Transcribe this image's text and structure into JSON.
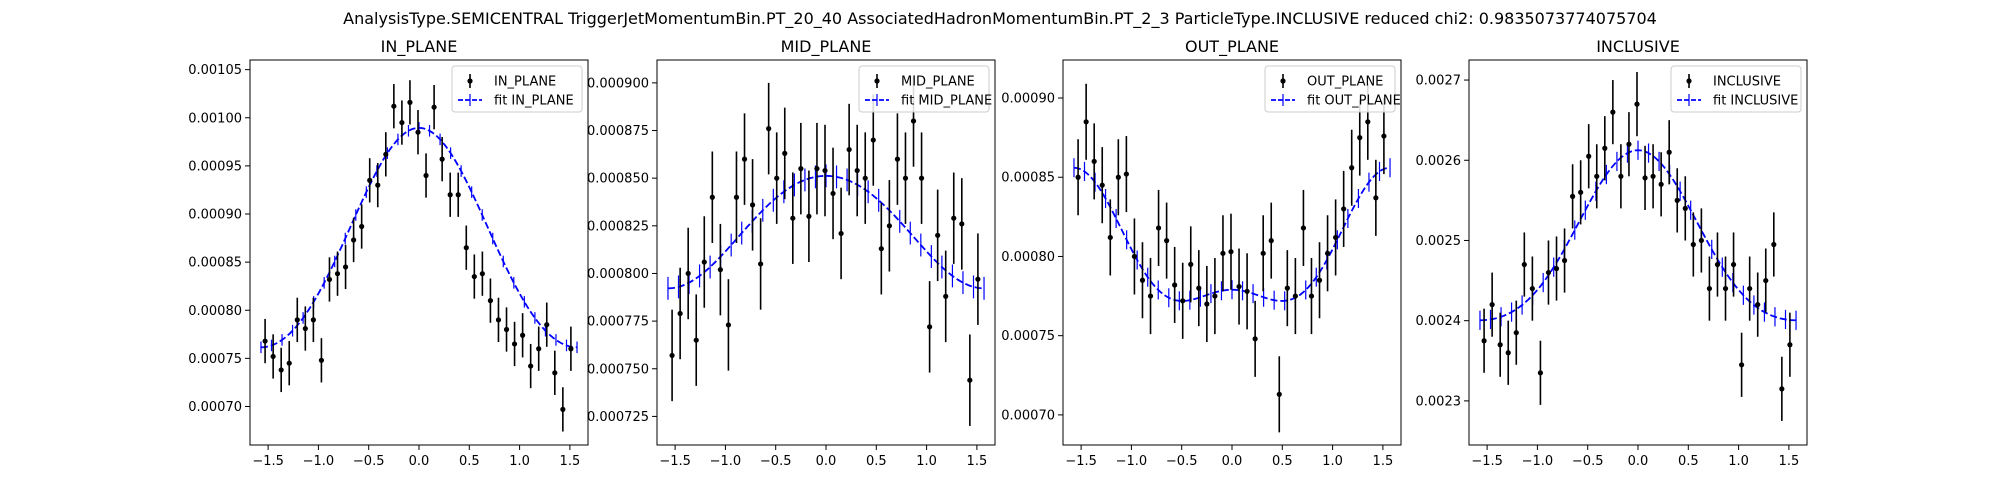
{
  "figure": {
    "suptitle": "AnalysisType.SEMICENTRAL TriggerJetMomentumBin.PT_20_40 AssociatedHadronMomentumBin.PT_2_3 ParticleType.INCLUSIVE reduced chi2: 0.9835073774075704"
  },
  "colors": {
    "data": "#000000",
    "fit": "#0000ff"
  },
  "chart_data": [
    {
      "type": "scatter",
      "title": "IN_PLANE",
      "xlabel": "",
      "ylabel": "",
      "xlim": [
        -1.68,
        1.68
      ],
      "ylim": [
        0.00066,
        0.00106
      ],
      "xticks": [
        "-1.5",
        "-1.0",
        "-0.5",
        "0.0",
        "0.5",
        "1.0",
        "1.5"
      ],
      "yticks": [
        "0.00070",
        "0.00075",
        "0.00080",
        "0.00085",
        "0.00090",
        "0.00095",
        "0.00100",
        "0.00105"
      ],
      "legend": {
        "placement": "top-right",
        "entries": [
          "IN_PLANE",
          "fit IN_PLANE"
        ]
      },
      "series": [
        {
          "name": "IN_PLANE",
          "style": "errorbar-points",
          "x": [
            -1.53,
            -1.45,
            -1.37,
            -1.29,
            -1.21,
            -1.13,
            -1.05,
            -0.97,
            -0.89,
            -0.81,
            -0.73,
            -0.65,
            -0.57,
            -0.49,
            -0.41,
            -0.33,
            -0.25,
            -0.17,
            -0.09,
            -0.01,
            0.07,
            0.15,
            0.23,
            0.31,
            0.39,
            0.47,
            0.55,
            0.63,
            0.71,
            0.79,
            0.87,
            0.95,
            1.03,
            1.11,
            1.19,
            1.27,
            1.35,
            1.43,
            1.51
          ],
          "y": [
            0.000768,
            0.000752,
            0.000738,
            0.000745,
            0.00079,
            0.000781,
            0.00079,
            0.000748,
            0.000832,
            0.000838,
            0.000845,
            0.000873,
            0.000887,
            0.000935,
            0.00093,
            0.000962,
            0.001012,
            0.000995,
            0.001016,
            0.000985,
            0.00094,
            0.001011,
            0.000957,
            0.00092,
            0.00092,
            0.000865,
            0.000835,
            0.000838,
            0.00081,
            0.00079,
            0.00078,
            0.000765,
            0.000774,
            0.000742,
            0.00076,
            0.000785,
            0.000735,
            0.000697,
            0.00076
          ],
          "yerr": [
            2.3e-05,
            2.3e-05,
            2.3e-05,
            2.3e-05,
            2.3e-05,
            2.3e-05,
            2.3e-05,
            2.3e-05,
            2.3e-05,
            2.3e-05,
            2.3e-05,
            2.3e-05,
            2.3e-05,
            2.3e-05,
            2.3e-05,
            2.3e-05,
            2.3e-05,
            2.3e-05,
            2.3e-05,
            2.3e-05,
            2.3e-05,
            2.3e-05,
            2.3e-05,
            2.3e-05,
            2.3e-05,
            2.3e-05,
            2.3e-05,
            2.3e-05,
            2.3e-05,
            2.3e-05,
            2.3e-05,
            2.3e-05,
            2.3e-05,
            2.3e-05,
            2.3e-05,
            2.3e-05,
            2.3e-05,
            2.3e-05,
            2.3e-05
          ]
        },
        {
          "name": "fit IN_PLANE",
          "style": "dashed-line",
          "base": 0.000869,
          "v2": 0.000114,
          "v4": 6.5e-06,
          "errbar": 6e-06
        }
      ]
    },
    {
      "type": "scatter",
      "title": "MID_PLANE",
      "xlabel": "",
      "ylabel": "",
      "xlim": [
        -1.68,
        1.68
      ],
      "ylim": [
        0.00071,
        0.000912
      ],
      "xticks": [
        "-1.5",
        "-1.0",
        "-0.5",
        "0.0",
        "0.5",
        "1.0",
        "1.5"
      ],
      "yticks": [
        "0.000725",
        "0.000750",
        "0.000775",
        "0.000800",
        "0.000825",
        "0.000850",
        "0.000875",
        "0.000900"
      ],
      "legend": {
        "placement": "top-right",
        "entries": [
          "MID_PLANE",
          "fit MID_PLANE"
        ]
      },
      "series": [
        {
          "name": "MID_PLANE",
          "style": "errorbar-points",
          "x": [
            -1.53,
            -1.45,
            -1.37,
            -1.29,
            -1.21,
            -1.13,
            -1.05,
            -0.97,
            -0.89,
            -0.81,
            -0.73,
            -0.65,
            -0.57,
            -0.49,
            -0.41,
            -0.33,
            -0.25,
            -0.17,
            -0.09,
            -0.01,
            0.07,
            0.15,
            0.23,
            0.31,
            0.39,
            0.47,
            0.55,
            0.63,
            0.71,
            0.79,
            0.87,
            0.95,
            1.03,
            1.11,
            1.19,
            1.27,
            1.35,
            1.43,
            1.51
          ],
          "y": [
            0.000757,
            0.000779,
            0.0008,
            0.000765,
            0.000806,
            0.00084,
            0.000802,
            0.000773,
            0.00084,
            0.00086,
            0.000836,
            0.000805,
            0.000876,
            0.00085,
            0.000863,
            0.000829,
            0.000855,
            0.00083,
            0.000855,
            0.000854,
            0.000842,
            0.000821,
            0.000865,
            0.000854,
            0.00085,
            0.00087,
            0.000813,
            0.000825,
            0.00086,
            0.00085,
            0.00088,
            0.00085,
            0.000772,
            0.00082,
            0.000788,
            0.000829,
            0.000826,
            0.000744,
            0.000797
          ],
          "yerr": [
            2.4e-05,
            2.4e-05,
            2.4e-05,
            2.4e-05,
            2.4e-05,
            2.4e-05,
            2.4e-05,
            2.4e-05,
            2.4e-05,
            2.4e-05,
            2.4e-05,
            2.4e-05,
            2.4e-05,
            2.4e-05,
            2.4e-05,
            2.4e-05,
            2.4e-05,
            2.4e-05,
            2.4e-05,
            2.4e-05,
            2.4e-05,
            2.4e-05,
            2.4e-05,
            2.4e-05,
            2.4e-05,
            2.4e-05,
            2.4e-05,
            2.4e-05,
            2.4e-05,
            2.4e-05,
            2.4e-05,
            2.4e-05,
            2.4e-05,
            2.4e-05,
            2.4e-05,
            2.4e-05,
            2.4e-05,
            2.4e-05,
            2.4e-05
          ]
        },
        {
          "name": "fit MID_PLANE",
          "style": "dashed-line",
          "base": 0.000823,
          "v2": 2.95e-05,
          "v4": -1.3e-06,
          "errbar": 6e-06
        }
      ]
    },
    {
      "type": "scatter",
      "title": "OUT_PLANE",
      "xlabel": "",
      "ylabel": "",
      "xlim": [
        -1.68,
        1.68
      ],
      "ylim": [
        0.000681,
        0.000924
      ],
      "xticks": [
        "-1.5",
        "-1.0",
        "-0.5",
        "0.0",
        "0.5",
        "1.0",
        "1.5"
      ],
      "yticks": [
        "0.00070",
        "0.00075",
        "0.00080",
        "0.00085",
        "0.00090"
      ],
      "legend": {
        "placement": "top-right",
        "entries": [
          "OUT_PLANE",
          "fit OUT_PLANE"
        ]
      },
      "series": [
        {
          "name": "OUT_PLANE",
          "style": "errorbar-points",
          "x": [
            -1.53,
            -1.45,
            -1.37,
            -1.29,
            -1.21,
            -1.13,
            -1.05,
            -0.97,
            -0.89,
            -0.81,
            -0.73,
            -0.65,
            -0.57,
            -0.49,
            -0.41,
            -0.33,
            -0.25,
            -0.17,
            -0.09,
            -0.01,
            0.07,
            0.15,
            0.23,
            0.31,
            0.39,
            0.47,
            0.55,
            0.63,
            0.71,
            0.79,
            0.87,
            0.95,
            1.03,
            1.11,
            1.19,
            1.27,
            1.35,
            1.43,
            1.51
          ],
          "y": [
            0.00085,
            0.000885,
            0.00086,
            0.000845,
            0.000812,
            0.00085,
            0.000852,
            0.0008,
            0.000785,
            0.000775,
            0.000818,
            0.00081,
            0.000782,
            0.000772,
            0.000795,
            0.00078,
            0.00077,
            0.000775,
            0.000802,
            0.000803,
            0.000781,
            0.000778,
            0.000748,
            0.000802,
            0.00081,
            0.000713,
            0.00078,
            0.000775,
            0.000818,
            0.000775,
            0.000785,
            0.000802,
            0.000812,
            0.00083,
            0.000856,
            0.000875,
            0.000885,
            0.000837,
            0.000876
          ],
          "yerr": [
            2.4e-05,
            2.4e-05,
            2.4e-05,
            2.4e-05,
            2.4e-05,
            2.4e-05,
            2.4e-05,
            2.4e-05,
            2.4e-05,
            2.4e-05,
            2.4e-05,
            2.4e-05,
            2.4e-05,
            2.4e-05,
            2.4e-05,
            2.4e-05,
            2.4e-05,
            2.4e-05,
            2.4e-05,
            2.4e-05,
            2.4e-05,
            2.4e-05,
            2.4e-05,
            2.4e-05,
            2.4e-05,
            2.4e-05,
            2.4e-05,
            2.4e-05,
            2.4e-05,
            2.4e-05,
            2.4e-05,
            2.4e-05,
            2.4e-05,
            2.4e-05,
            2.4e-05,
            2.4e-05,
            2.4e-05,
            2.4e-05,
            2.4e-05
          ]
        },
        {
          "name": "fit OUT_PLANE",
          "style": "dashed-line",
          "base": 0.0008,
          "v2": -3.85e-05,
          "v4": 1.75e-05,
          "errbar": 6e-06
        }
      ]
    },
    {
      "type": "scatter",
      "title": "INCLUSIVE",
      "xlabel": "",
      "ylabel": "",
      "xlim": [
        -1.68,
        1.68
      ],
      "ylim": [
        0.002245,
        0.002725
      ],
      "xticks": [
        "-1.5",
        "-1.0",
        "-0.5",
        "0.0",
        "0.5",
        "1.0",
        "1.5"
      ],
      "yticks": [
        "0.0023",
        "0.0024",
        "0.0025",
        "0.0026",
        "0.0027"
      ],
      "legend": {
        "placement": "top-right",
        "entries": [
          "INCLUSIVE",
          "fit INCLUSIVE"
        ]
      },
      "series": [
        {
          "name": "INCLUSIVE",
          "style": "errorbar-points",
          "x": [
            -1.53,
            -1.45,
            -1.37,
            -1.29,
            -1.21,
            -1.13,
            -1.05,
            -0.97,
            -0.89,
            -0.81,
            -0.73,
            -0.65,
            -0.57,
            -0.49,
            -0.41,
            -0.33,
            -0.25,
            -0.17,
            -0.09,
            -0.01,
            0.07,
            0.15,
            0.23,
            0.31,
            0.39,
            0.47,
            0.55,
            0.63,
            0.71,
            0.79,
            0.87,
            0.95,
            1.03,
            1.11,
            1.19,
            1.27,
            1.35,
            1.43,
            1.51
          ],
          "y": [
            0.002375,
            0.00242,
            0.00237,
            0.00236,
            0.002385,
            0.00247,
            0.00244,
            0.002335,
            0.00246,
            0.002465,
            0.002475,
            0.002555,
            0.00256,
            0.002605,
            0.00258,
            0.002615,
            0.00266,
            0.00258,
            0.00262,
            0.00267,
            0.002578,
            0.00258,
            0.00257,
            0.00261,
            0.00255,
            0.00254,
            0.002495,
            0.0025,
            0.00244,
            0.00247,
            0.00244,
            0.00247,
            0.002345,
            0.00244,
            0.00242,
            0.00245,
            0.002495,
            0.002315,
            0.00237
          ],
          "yerr": [
            4e-05,
            4e-05,
            4e-05,
            4e-05,
            4e-05,
            4e-05,
            4e-05,
            4e-05,
            4e-05,
            4e-05,
            4e-05,
            4e-05,
            4e-05,
            4e-05,
            4e-05,
            4e-05,
            4e-05,
            4e-05,
            4e-05,
            4e-05,
            4e-05,
            4e-05,
            4e-05,
            4e-05,
            4e-05,
            4e-05,
            4e-05,
            4e-05,
            4e-05,
            4e-05,
            4e-05,
            4e-05,
            4e-05,
            4e-05,
            4e-05,
            4e-05,
            4e-05,
            4e-05,
            4e-05
          ]
        },
        {
          "name": "fit INCLUSIVE",
          "style": "dashed-line",
          "base": 0.002492,
          "v2": 0.000106,
          "v4": 1.45e-05,
          "errbar": 1.2e-05
        }
      ]
    }
  ]
}
